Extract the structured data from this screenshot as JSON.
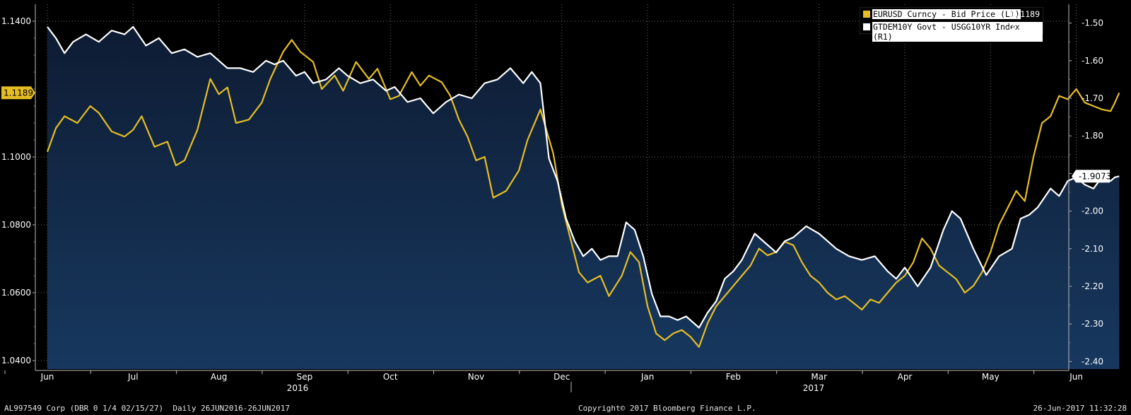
{
  "colors": {
    "eurusd": "#e6be24",
    "bund_spread": "#ffffff",
    "area_top": "#0e1c33",
    "area_bottom": "#17385f",
    "background": "#000000"
  },
  "legend": {
    "items": [
      {
        "label": "EURUSD Curncy - Bid Price (L1)",
        "value": "1.1189",
        "color": "#e6be24"
      },
      {
        "label": "GTDEM10Y Govt - USGG10YR Index (R1)",
        "value": "-1.9073",
        "color": "#ffffff"
      }
    ]
  },
  "footer": {
    "left": "AL997549 Corp (DBR 0 1/4 02/15/27)  Daily 26JUN2016-26JUN2017",
    "center": "Copyright© 2017 Bloomberg Finance L.P.",
    "right": "26-Jun-2017 11:32:28"
  },
  "chart_data": {
    "type": "line",
    "x_labels": [
      "Jun",
      "Jul",
      "Aug",
      "Sep",
      "Oct",
      "Nov",
      "Dec",
      "Jan",
      "Feb",
      "Mar",
      "Apr",
      "May",
      "Jun"
    ],
    "year_labels": [
      "2016",
      "2017"
    ],
    "left_axis": {
      "ticks": [
        "1.1400",
        "1.1000",
        "1.0800",
        "1.0600",
        "1.0400"
      ],
      "range": [
        1.0375,
        1.145
      ]
    },
    "right_axis": {
      "ticks": [
        "-1.50",
        "-1.60",
        "-1.70",
        "-1.80",
        "-1.90",
        "-2.00",
        "-2.10",
        "-2.20",
        "-2.30",
        "-2.40"
      ],
      "range": [
        -2.42,
        -1.45
      ]
    },
    "last_value_tags": {
      "left": "1.1189",
      "right": "-1.9073"
    },
    "series": [
      {
        "name": "EURUSD Curncy - Bid Price (L1)",
        "axis": "left",
        "fill": false,
        "points": [
          [
            0,
            1.1015
          ],
          [
            0.1,
            1.1085
          ],
          [
            0.2,
            1.112
          ],
          [
            0.35,
            1.11
          ],
          [
            0.5,
            1.115
          ],
          [
            0.6,
            1.113
          ],
          [
            0.75,
            1.1075
          ],
          [
            0.9,
            1.106
          ],
          [
            1.0,
            1.108
          ],
          [
            1.1,
            1.112
          ],
          [
            1.25,
            1.103
          ],
          [
            1.4,
            1.1045
          ],
          [
            1.5,
            1.0975
          ],
          [
            1.6,
            1.099
          ],
          [
            1.75,
            1.108
          ],
          [
            1.9,
            1.123
          ],
          [
            2.0,
            1.1185
          ],
          [
            2.1,
            1.1205
          ],
          [
            2.2,
            1.11
          ],
          [
            2.35,
            1.111
          ],
          [
            2.5,
            1.116
          ],
          [
            2.6,
            1.123
          ],
          [
            2.75,
            1.131
          ],
          [
            2.85,
            1.1345
          ],
          [
            2.95,
            1.131
          ],
          [
            3.1,
            1.128
          ],
          [
            3.2,
            1.12
          ],
          [
            3.35,
            1.124
          ],
          [
            3.45,
            1.1195
          ],
          [
            3.6,
            1.128
          ],
          [
            3.75,
            1.123
          ],
          [
            3.85,
            1.126
          ],
          [
            4.0,
            1.117
          ],
          [
            4.1,
            1.118
          ],
          [
            4.25,
            1.125
          ],
          [
            4.35,
            1.121
          ],
          [
            4.45,
            1.124
          ],
          [
            4.6,
            1.122
          ],
          [
            4.7,
            1.118
          ],
          [
            4.8,
            1.111
          ],
          [
            4.9,
            1.106
          ],
          [
            5.0,
            1.099
          ],
          [
            5.1,
            1.1
          ],
          [
            5.2,
            1.088
          ],
          [
            5.35,
            1.09
          ],
          [
            5.5,
            1.096
          ],
          [
            5.6,
            1.105
          ],
          [
            5.75,
            1.114
          ],
          [
            5.9,
            1.101
          ],
          [
            6.0,
            1.086
          ],
          [
            6.1,
            1.076
          ],
          [
            6.2,
            1.066
          ],
          [
            6.3,
            1.063
          ],
          [
            6.45,
            1.065
          ],
          [
            6.55,
            1.059
          ],
          [
            6.7,
            1.065
          ],
          [
            6.8,
            1.072
          ],
          [
            6.9,
            1.069
          ],
          [
            7.0,
            1.056
          ],
          [
            7.1,
            1.048
          ],
          [
            7.2,
            1.046
          ],
          [
            7.3,
            1.048
          ],
          [
            7.4,
            1.049
          ],
          [
            7.5,
            1.047
          ],
          [
            7.6,
            1.044
          ],
          [
            7.7,
            1.051
          ],
          [
            7.8,
            1.056
          ],
          [
            7.9,
            1.059
          ],
          [
            8.0,
            1.062
          ],
          [
            8.1,
            1.065
          ],
          [
            8.2,
            1.068
          ],
          [
            8.3,
            1.073
          ],
          [
            8.4,
            1.071
          ],
          [
            8.5,
            1.072
          ],
          [
            8.6,
            1.075
          ],
          [
            8.7,
            1.074
          ],
          [
            8.8,
            1.069
          ],
          [
            8.9,
            1.065
          ],
          [
            9.0,
            1.063
          ],
          [
            9.1,
            1.06
          ],
          [
            9.2,
            1.058
          ],
          [
            9.3,
            1.059
          ],
          [
            9.4,
            1.057
          ],
          [
            9.5,
            1.055
          ],
          [
            9.6,
            1.058
          ],
          [
            9.7,
            1.057
          ],
          [
            9.8,
            1.06
          ],
          [
            9.9,
            1.063
          ],
          [
            10.0,
            1.065
          ],
          [
            10.1,
            1.069
          ],
          [
            10.2,
            1.076
          ],
          [
            10.3,
            1.073
          ],
          [
            10.4,
            1.068
          ],
          [
            10.5,
            1.066
          ],
          [
            10.6,
            1.064
          ],
          [
            10.7,
            1.06
          ],
          [
            10.8,
            1.062
          ],
          [
            10.9,
            1.066
          ],
          [
            11.0,
            1.072
          ],
          [
            11.1,
            1.08
          ],
          [
            11.2,
            1.085
          ],
          [
            11.3,
            1.09
          ],
          [
            11.4,
            1.087
          ],
          [
            11.5,
            1.1
          ],
          [
            11.6,
            1.11
          ],
          [
            11.7,
            1.112
          ],
          [
            11.8,
            1.118
          ],
          [
            11.9,
            1.117
          ],
          [
            12.0,
            1.12
          ],
          [
            12.1,
            1.116
          ],
          [
            12.2,
            1.115
          ],
          [
            12.3,
            1.114
          ],
          [
            12.4,
            1.1135
          ],
          [
            12.45,
            1.116
          ],
          [
            12.5,
            1.1189
          ]
        ]
      },
      {
        "name": "GTDEM10Y Govt - USGG10YR Index (R1)",
        "axis": "right",
        "fill": true,
        "points": [
          [
            0,
            -1.51
          ],
          [
            0.1,
            -1.54
          ],
          [
            0.2,
            -1.58
          ],
          [
            0.3,
            -1.55
          ],
          [
            0.45,
            -1.53
          ],
          [
            0.6,
            -1.55
          ],
          [
            0.75,
            -1.52
          ],
          [
            0.9,
            -1.53
          ],
          [
            1.0,
            -1.51
          ],
          [
            1.15,
            -1.56
          ],
          [
            1.3,
            -1.54
          ],
          [
            1.45,
            -1.58
          ],
          [
            1.6,
            -1.57
          ],
          [
            1.75,
            -1.59
          ],
          [
            1.9,
            -1.58
          ],
          [
            2.0,
            -1.6
          ],
          [
            2.1,
            -1.62
          ],
          [
            2.25,
            -1.62
          ],
          [
            2.4,
            -1.63
          ],
          [
            2.55,
            -1.6
          ],
          [
            2.65,
            -1.61
          ],
          [
            2.75,
            -1.6
          ],
          [
            2.9,
            -1.64
          ],
          [
            3.0,
            -1.63
          ],
          [
            3.1,
            -1.66
          ],
          [
            3.25,
            -1.65
          ],
          [
            3.4,
            -1.62
          ],
          [
            3.5,
            -1.64
          ],
          [
            3.65,
            -1.66
          ],
          [
            3.8,
            -1.65
          ],
          [
            3.95,
            -1.68
          ],
          [
            4.05,
            -1.67
          ],
          [
            4.2,
            -1.71
          ],
          [
            4.35,
            -1.7
          ],
          [
            4.5,
            -1.74
          ],
          [
            4.65,
            -1.71
          ],
          [
            4.8,
            -1.69
          ],
          [
            4.95,
            -1.7
          ],
          [
            5.1,
            -1.66
          ],
          [
            5.25,
            -1.65
          ],
          [
            5.4,
            -1.62
          ],
          [
            5.55,
            -1.66
          ],
          [
            5.65,
            -1.63
          ],
          [
            5.75,
            -1.66
          ],
          [
            5.85,
            -1.86
          ],
          [
            5.95,
            -1.92
          ],
          [
            6.05,
            -2.02
          ],
          [
            6.15,
            -2.08
          ],
          [
            6.25,
            -2.12
          ],
          [
            6.35,
            -2.1
          ],
          [
            6.45,
            -2.13
          ],
          [
            6.55,
            -2.12
          ],
          [
            6.65,
            -2.12
          ],
          [
            6.75,
            -2.03
          ],
          [
            6.85,
            -2.05
          ],
          [
            6.95,
            -2.12
          ],
          [
            7.05,
            -2.22
          ],
          [
            7.15,
            -2.28
          ],
          [
            7.25,
            -2.28
          ],
          [
            7.35,
            -2.29
          ],
          [
            7.45,
            -2.28
          ],
          [
            7.6,
            -2.31
          ],
          [
            7.7,
            -2.27
          ],
          [
            7.8,
            -2.24
          ],
          [
            7.9,
            -2.18
          ],
          [
            8.0,
            -2.16
          ],
          [
            8.1,
            -2.13
          ],
          [
            8.25,
            -2.06
          ],
          [
            8.4,
            -2.09
          ],
          [
            8.5,
            -2.11
          ],
          [
            8.6,
            -2.08
          ],
          [
            8.7,
            -2.07
          ],
          [
            8.85,
            -2.04
          ],
          [
            9.0,
            -2.06
          ],
          [
            9.1,
            -2.08
          ],
          [
            9.2,
            -2.1
          ],
          [
            9.35,
            -2.12
          ],
          [
            9.5,
            -2.13
          ],
          [
            9.65,
            -2.12
          ],
          [
            9.8,
            -2.16
          ],
          [
            9.9,
            -2.18
          ],
          [
            10.0,
            -2.15
          ],
          [
            10.15,
            -2.2
          ],
          [
            10.3,
            -2.15
          ],
          [
            10.45,
            -2.05
          ],
          [
            10.55,
            -2.0
          ],
          [
            10.65,
            -2.02
          ],
          [
            10.8,
            -2.1
          ],
          [
            10.95,
            -2.17
          ],
          [
            11.1,
            -2.12
          ],
          [
            11.25,
            -2.1
          ],
          [
            11.35,
            -2.02
          ],
          [
            11.45,
            -2.01
          ],
          [
            11.55,
            -1.99
          ],
          [
            11.7,
            -1.94
          ],
          [
            11.8,
            -1.96
          ],
          [
            11.9,
            -1.92
          ],
          [
            12.0,
            -1.91
          ],
          [
            12.1,
            -1.93
          ],
          [
            12.2,
            -1.94
          ],
          [
            12.3,
            -1.91
          ],
          [
            12.4,
            -1.92
          ],
          [
            12.45,
            -1.91
          ],
          [
            12.5,
            -1.9073
          ]
        ]
      }
    ]
  }
}
